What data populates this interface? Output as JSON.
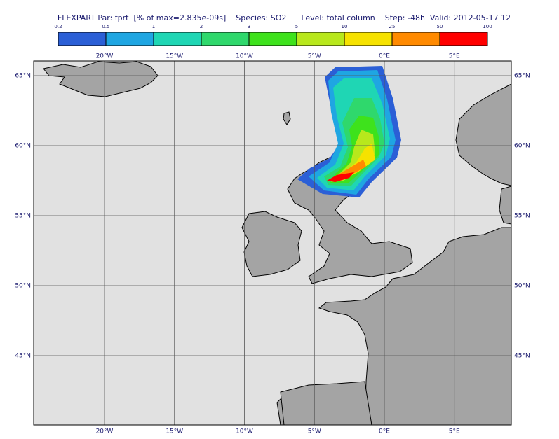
{
  "title": "FLEXPART Par: fprt  [% of max=2.835e-09s]    Species: SO2      Level: total column    Step: -48h  Valid: 2012-05-17 12",
  "colorbar": {
    "levels": [
      0.2,
      0.5,
      1,
      2,
      3,
      5,
      10,
      25,
      50,
      100
    ],
    "colors": [
      "#2b5fd6",
      "#1fa6e2",
      "#1fd6b4",
      "#2fd86c",
      "#3ee21c",
      "#b8e81c",
      "#f6e200",
      "#ff8a00",
      "#ff0000"
    ]
  },
  "lon_ticks": [
    {
      "value": -20,
      "label": "20°W"
    },
    {
      "value": -15,
      "label": "15°W"
    },
    {
      "value": -10,
      "label": "10°W"
    },
    {
      "value": -5,
      "label": "5°W"
    },
    {
      "value": 0,
      "label": "0°E"
    },
    {
      "value": 5,
      "label": "5°E"
    }
  ],
  "lat_ticks": [
    {
      "value": 65,
      "label": "65°N"
    },
    {
      "value": 60,
      "label": "60°N"
    },
    {
      "value": 55,
      "label": "55°N"
    },
    {
      "value": 50,
      "label": "50°N"
    },
    {
      "value": 45,
      "label": "45°N"
    }
  ]
}
